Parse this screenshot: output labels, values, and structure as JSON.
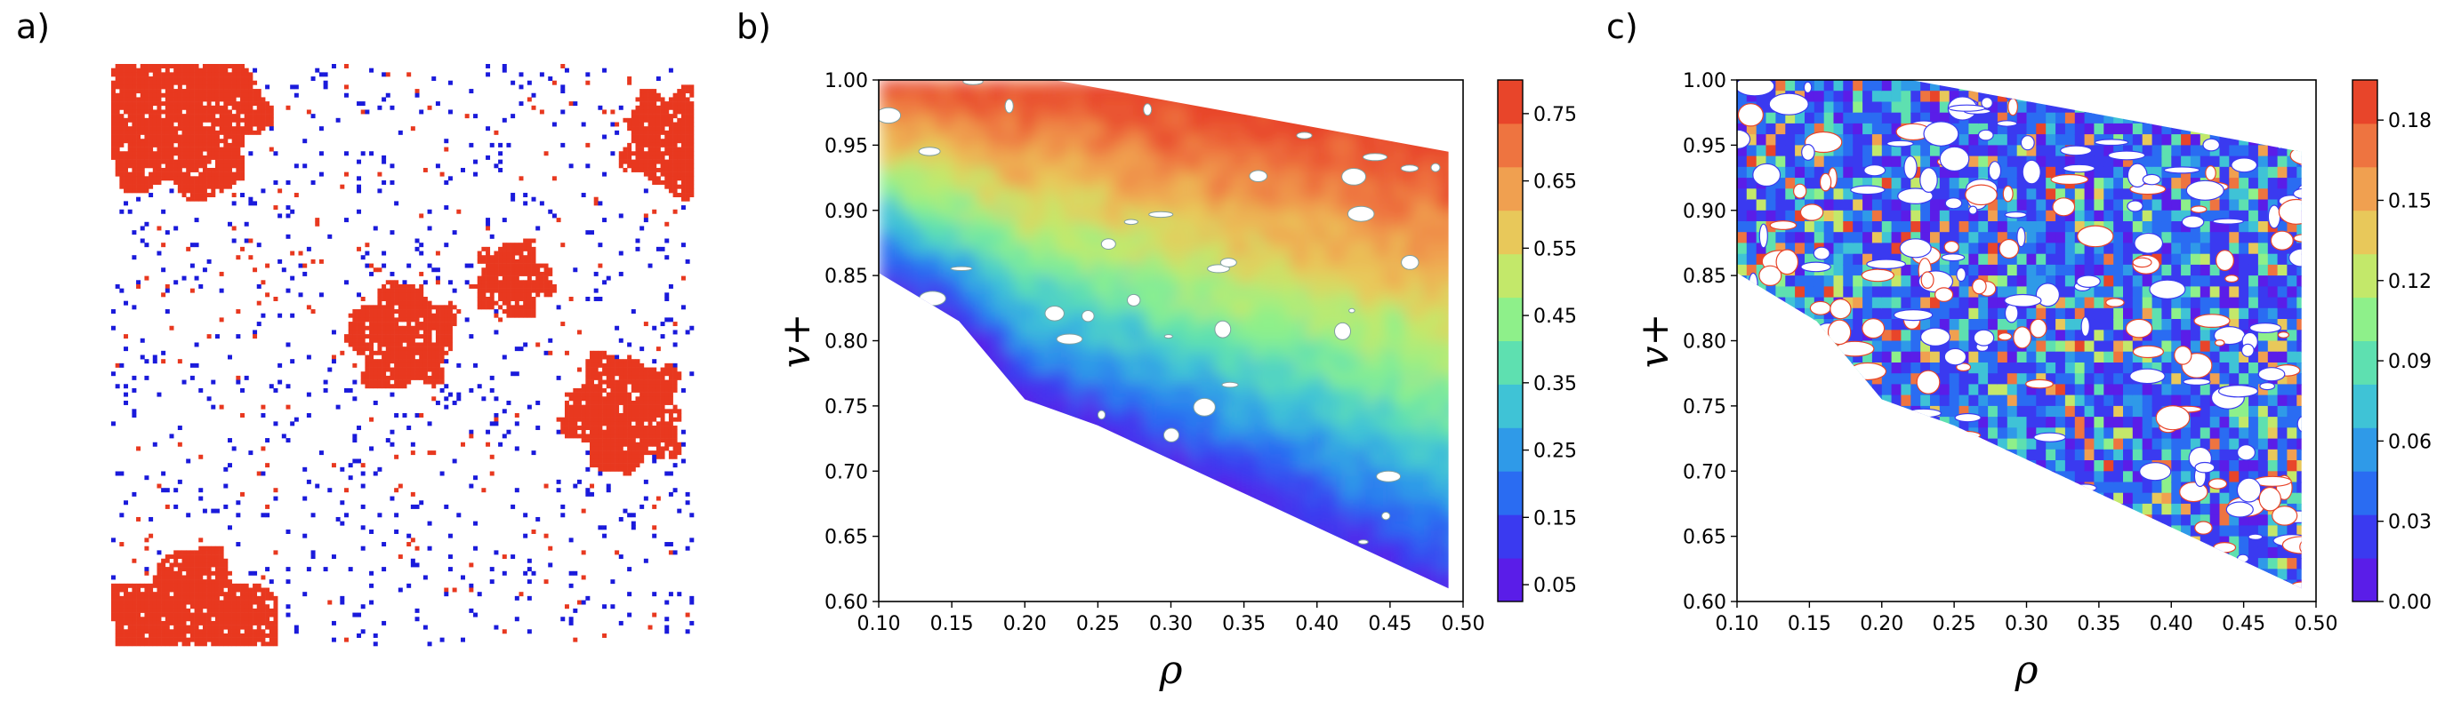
{
  "panels": {
    "a": {
      "letter": "a)"
    },
    "b": {
      "letter": "b)"
    },
    "c": {
      "letter": "c)"
    }
  },
  "colors": {
    "red": "#e8381f",
    "blue": "#1a1adb",
    "rainbow": [
      "#5a1de8",
      "#3a3af0",
      "#2a6cf2",
      "#2f9ae8",
      "#3fc3d6",
      "#5ee0b0",
      "#8ef08a",
      "#c3e86a",
      "#e8c85a",
      "#f0a050",
      "#ee7440",
      "#e8452a"
    ]
  },
  "chart_data": [
    {
      "type": "heatmap",
      "panel": "a",
      "description_of_content": "lattice snapshot",
      "grid_size": 140,
      "clusters": [
        {
          "cx": 0.12,
          "cy": 0.09,
          "r": 0.14
        },
        {
          "cx": 0.97,
          "cy": 0.13,
          "r": 0.09
        },
        {
          "cx": 0.5,
          "cy": 0.47,
          "r": 0.09
        },
        {
          "cx": 0.69,
          "cy": 0.37,
          "r": 0.065
        },
        {
          "cx": 0.88,
          "cy": 0.6,
          "r": 0.1
        },
        {
          "cx": 0.14,
          "cy": 0.98,
          "r": 0.14
        }
      ],
      "site_colors": [
        "red",
        "blue"
      ]
    },
    {
      "type": "heatmap",
      "panel": "b",
      "xlabel": "ρ",
      "ylabel": "v+",
      "xlim": [
        0.1,
        0.5
      ],
      "ylim": [
        0.6,
        1.0
      ],
      "xticks": [
        "0.10",
        "0.15",
        "0.20",
        "0.25",
        "0.30",
        "0.35",
        "0.40",
        "0.45",
        "0.50"
      ],
      "yticks": [
        "0.60",
        "0.65",
        "0.70",
        "0.75",
        "0.80",
        "0.85",
        "0.90",
        "0.95",
        "1.00"
      ],
      "colorbar_ticks": [
        "0.05",
        "0.15",
        "0.25",
        "0.35",
        "0.45",
        "0.55",
        "0.65",
        "0.75"
      ],
      "colorbar_range": [
        0.025,
        0.8
      ],
      "domain_polygon": [
        [
          0.1,
          1.0
        ],
        [
          0.22,
          1.0
        ],
        [
          0.49,
          0.945
        ],
        [
          0.49,
          0.61
        ],
        [
          0.25,
          0.735
        ],
        [
          0.2,
          0.755
        ],
        [
          0.155,
          0.815
        ],
        [
          0.1,
          0.852
        ]
      ],
      "trend": "value increases with v+ from about 0.10 at the lower boundary to about 0.78 at the top"
    },
    {
      "type": "heatmap",
      "panel": "c",
      "xlabel": "ρ",
      "ylabel": "v+",
      "xlim": [
        0.1,
        0.5
      ],
      "ylim": [
        0.6,
        1.0
      ],
      "xticks": [
        "0.10",
        "0.15",
        "0.20",
        "0.25",
        "0.30",
        "0.35",
        "0.40",
        "0.45",
        "0.50"
      ],
      "yticks": [
        "0.60",
        "0.65",
        "0.70",
        "0.75",
        "0.80",
        "0.85",
        "0.90",
        "0.95",
        "1.00"
      ],
      "colorbar_ticks": [
        "0.00",
        "0.03",
        "0.06",
        "0.09",
        "0.12",
        "0.15",
        "0.18"
      ],
      "colorbar_range": [
        0.0,
        0.195
      ],
      "domain_polygon": [
        [
          0.1,
          1.0
        ],
        [
          0.22,
          1.0
        ],
        [
          0.49,
          0.945
        ],
        [
          0.49,
          0.61
        ],
        [
          0.25,
          0.735
        ],
        [
          0.2,
          0.755
        ],
        [
          0.155,
          0.815
        ],
        [
          0.1,
          0.852
        ]
      ],
      "trend": "mostly low values (0.00–0.06) with scattered high-value spots"
    }
  ]
}
